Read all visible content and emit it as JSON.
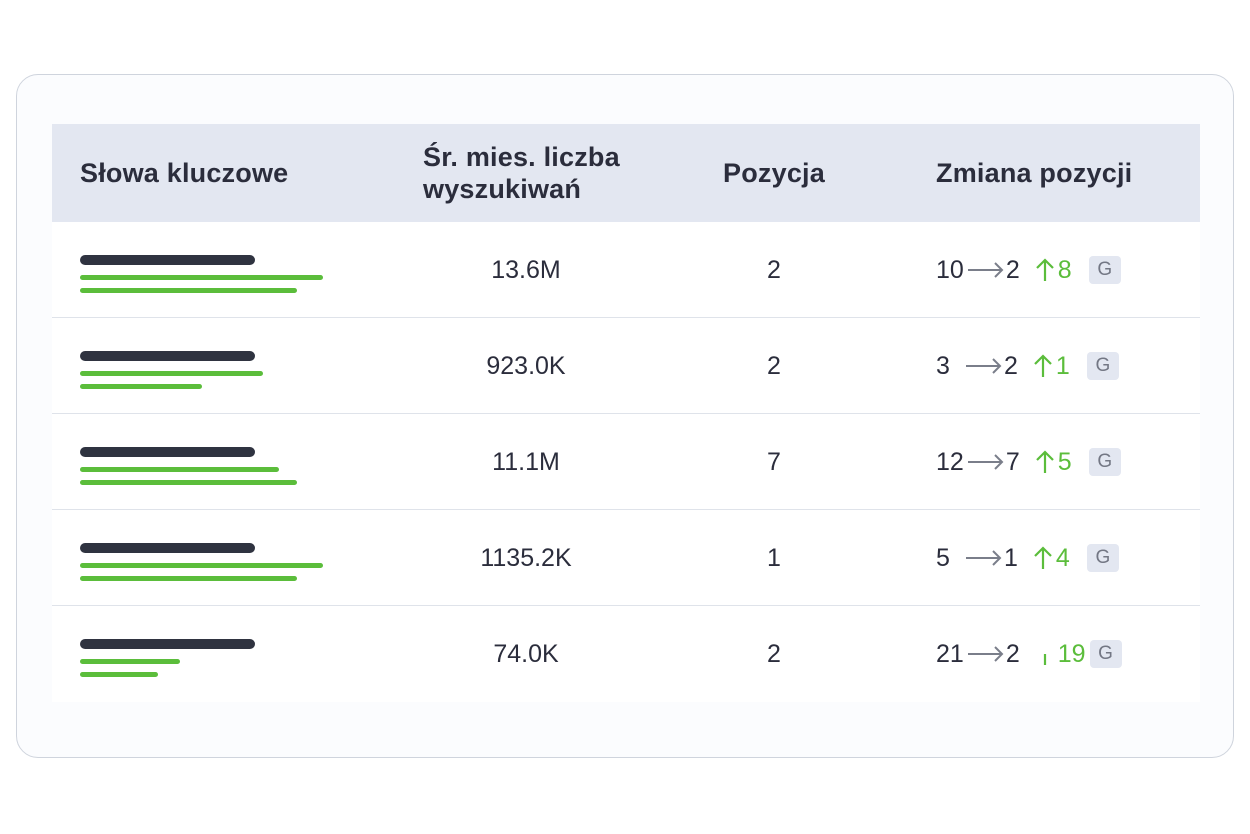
{
  "table": {
    "headers": {
      "keywords": "Słowa kluczowe",
      "volume": "Śr. mies. liczba wyszukiwań",
      "position": "Pozycja",
      "change": "Zmiana pozycji"
    },
    "rows": [
      {
        "volume": "13.6M",
        "position": "2",
        "from": "10",
        "to": "2",
        "delta": "8",
        "direction": "up",
        "engine": "G"
      },
      {
        "volume": "923.0K",
        "position": "2",
        "from": "3",
        "to": "2",
        "delta": "1",
        "direction": "up",
        "engine": "G"
      },
      {
        "volume": "11.1M",
        "position": "7",
        "from": "12",
        "to": "7",
        "delta": "5",
        "direction": "up",
        "engine": "G"
      },
      {
        "volume": "1135.2K",
        "position": "1",
        "from": "5",
        "to": "1",
        "delta": "4",
        "direction": "up",
        "engine": "G"
      },
      {
        "volume": "74.0K",
        "position": "2",
        "from": "21",
        "to": "2",
        "delta": "19",
        "direction": "up-partial",
        "engine": "G"
      }
    ]
  },
  "colors": {
    "header_bg": "#e3e7f1",
    "accent_green": "#5bbd3b",
    "placeholder_dark": "#2f3340",
    "badge_bg": "#e3e7f1"
  },
  "icons": {
    "transition": "long-right-arrow-icon",
    "increase": "arrow-up-icon",
    "engine_badge": "google-badge"
  }
}
